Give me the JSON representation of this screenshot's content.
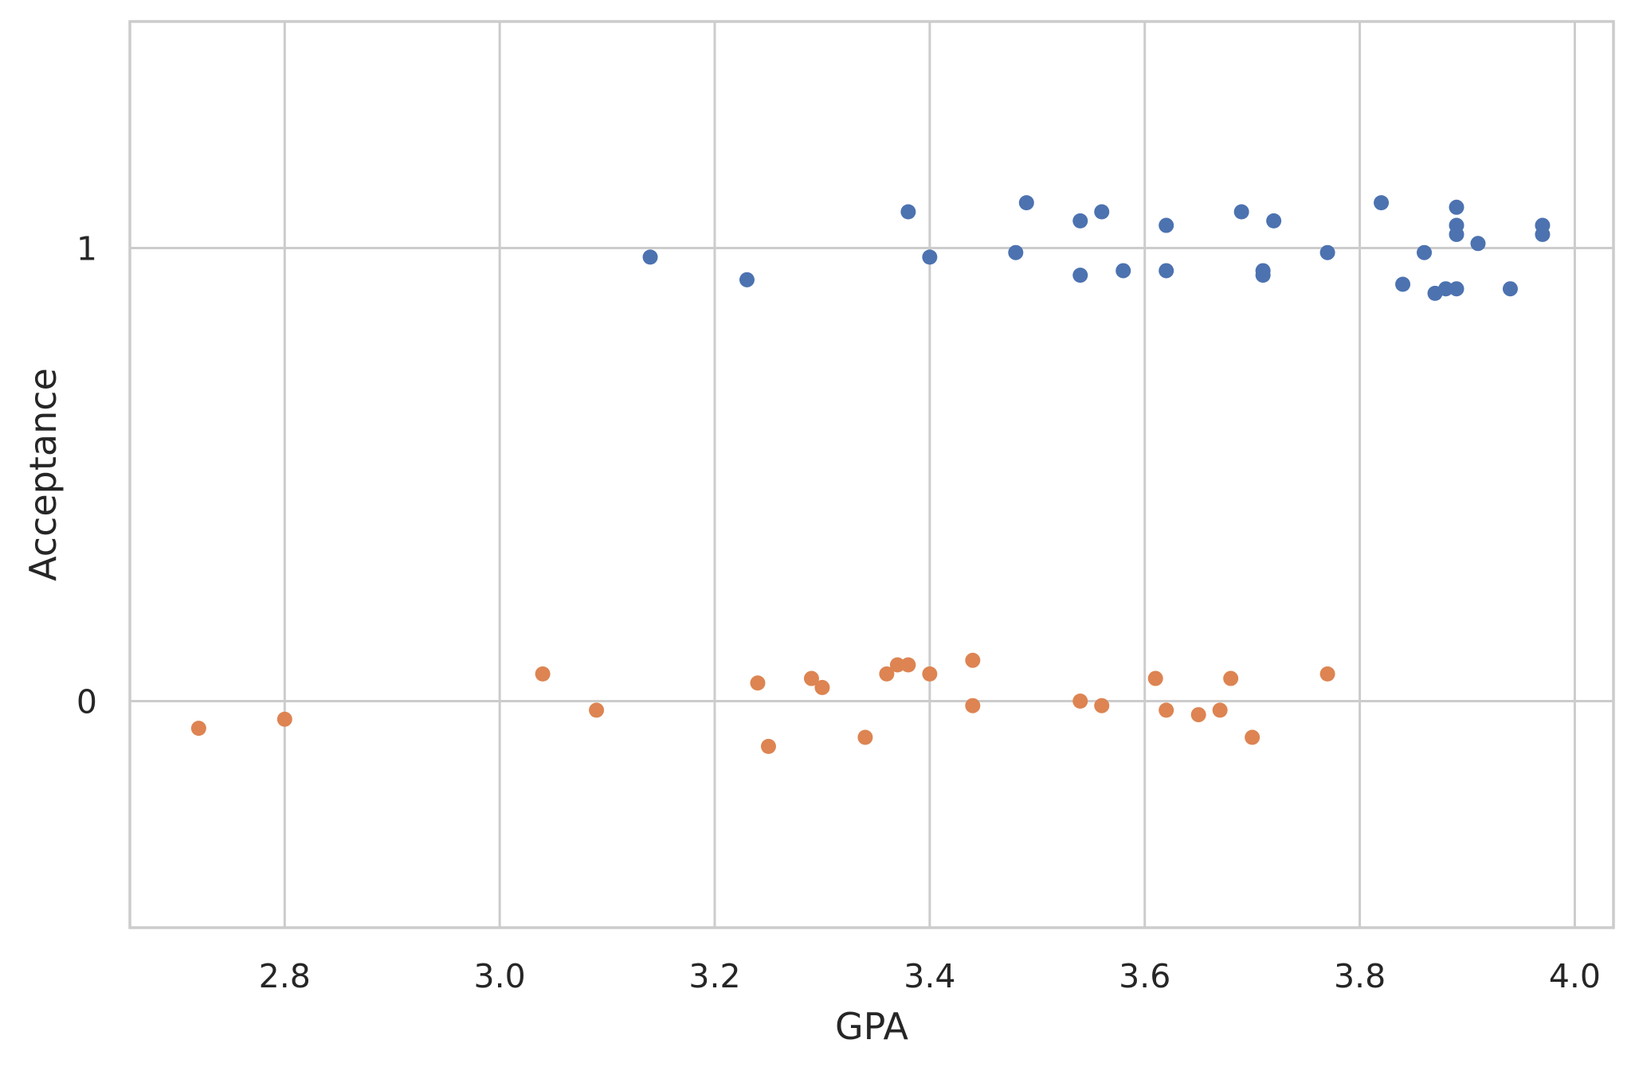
{
  "chart_data": {
    "type": "scatter",
    "title": "",
    "xlabel": "GPA",
    "ylabel": "Acceptance",
    "xlim": [
      2.656,
      4.036
    ],
    "ylim": [
      -0.5,
      1.5
    ],
    "xticks": [
      2.8,
      3.0,
      3.2,
      3.4,
      3.6,
      3.8,
      4.0
    ],
    "xtick_labels": [
      "2.8",
      "3.0",
      "3.2",
      "3.4",
      "3.6",
      "3.8",
      "4.0"
    ],
    "yticks": [
      0,
      1
    ],
    "ytick_labels": [
      "0",
      "1"
    ],
    "grid": true,
    "legend": "none",
    "series": [
      {
        "color": "#4c72b0",
        "points": [
          {
            "x": 3.14,
            "y": 0.98
          },
          {
            "x": 3.23,
            "y": 0.93
          },
          {
            "x": 3.38,
            "y": 1.08
          },
          {
            "x": 3.4,
            "y": 0.98
          },
          {
            "x": 3.48,
            "y": 0.99
          },
          {
            "x": 3.49,
            "y": 1.1
          },
          {
            "x": 3.54,
            "y": 1.06
          },
          {
            "x": 3.54,
            "y": 0.94
          },
          {
            "x": 3.56,
            "y": 1.08
          },
          {
            "x": 3.58,
            "y": 0.95
          },
          {
            "x": 3.62,
            "y": 1.05
          },
          {
            "x": 3.62,
            "y": 0.95
          },
          {
            "x": 3.69,
            "y": 1.08
          },
          {
            "x": 3.71,
            "y": 0.95
          },
          {
            "x": 3.71,
            "y": 0.94
          },
          {
            "x": 3.72,
            "y": 1.06
          },
          {
            "x": 3.77,
            "y": 0.99
          },
          {
            "x": 3.82,
            "y": 1.1
          },
          {
            "x": 3.84,
            "y": 0.92
          },
          {
            "x": 3.86,
            "y": 0.99
          },
          {
            "x": 3.87,
            "y": 0.9
          },
          {
            "x": 3.88,
            "y": 0.91
          },
          {
            "x": 3.89,
            "y": 1.09
          },
          {
            "x": 3.89,
            "y": 1.05
          },
          {
            "x": 3.89,
            "y": 1.03
          },
          {
            "x": 3.89,
            "y": 0.91
          },
          {
            "x": 3.91,
            "y": 1.01
          },
          {
            "x": 3.94,
            "y": 0.91
          },
          {
            "x": 3.97,
            "y": 1.05
          },
          {
            "x": 3.97,
            "y": 1.03
          }
        ]
      },
      {
        "color": "#dd8452",
        "points": [
          {
            "x": 2.72,
            "y": -0.06
          },
          {
            "x": 2.8,
            "y": -0.04
          },
          {
            "x": 3.04,
            "y": 0.06
          },
          {
            "x": 3.09,
            "y": -0.02
          },
          {
            "x": 3.24,
            "y": 0.04
          },
          {
            "x": 3.25,
            "y": -0.1
          },
          {
            "x": 3.29,
            "y": 0.05
          },
          {
            "x": 3.3,
            "y": 0.03
          },
          {
            "x": 3.34,
            "y": -0.08
          },
          {
            "x": 3.36,
            "y": 0.06
          },
          {
            "x": 3.37,
            "y": 0.08
          },
          {
            "x": 3.38,
            "y": 0.08
          },
          {
            "x": 3.4,
            "y": 0.06
          },
          {
            "x": 3.44,
            "y": 0.09
          },
          {
            "x": 3.44,
            "y": -0.01
          },
          {
            "x": 3.54,
            "y": 0.0
          },
          {
            "x": 3.56,
            "y": -0.01
          },
          {
            "x": 3.61,
            "y": 0.05
          },
          {
            "x": 3.62,
            "y": -0.02
          },
          {
            "x": 3.65,
            "y": -0.03
          },
          {
            "x": 3.67,
            "y": -0.02
          },
          {
            "x": 3.68,
            "y": 0.05
          },
          {
            "x": 3.7,
            "y": -0.08
          },
          {
            "x": 3.77,
            "y": 0.06
          }
        ]
      }
    ],
    "colors": {
      "grid": "#cccccc",
      "frame": "#cccccc",
      "text": "#262626"
    }
  }
}
